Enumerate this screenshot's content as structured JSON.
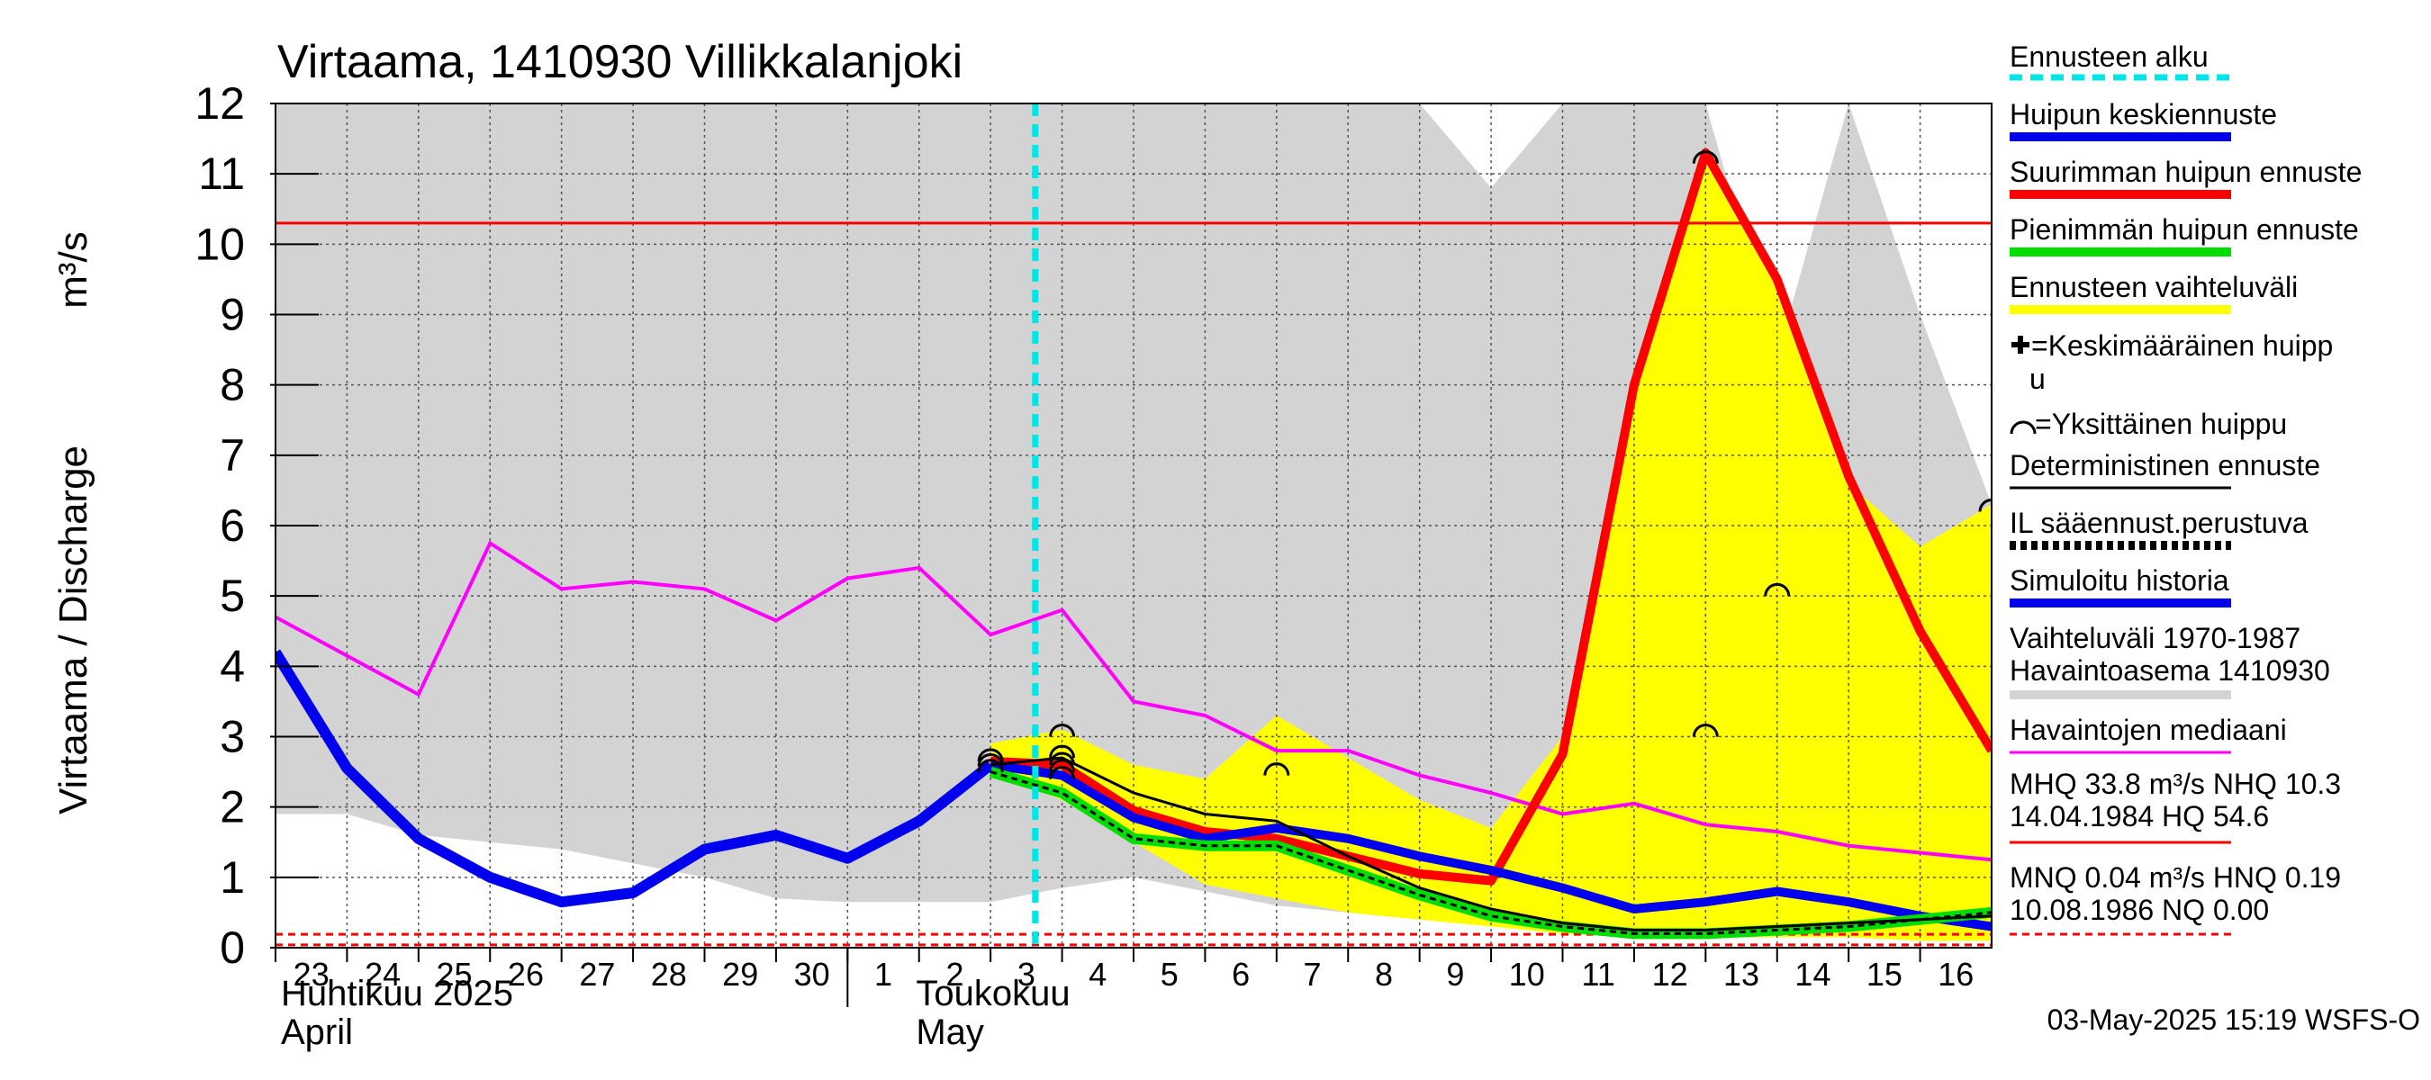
{
  "chart_data": {
    "type": "line",
    "title": "Virtaama, 1410930 Villikkalanjoki",
    "ylabel": "Virtaama / Discharge",
    "yunit": "m³/s",
    "ylim": [
      0,
      12
    ],
    "yticks": [
      0,
      1,
      2,
      3,
      4,
      5,
      6,
      7,
      8,
      9,
      10,
      11,
      12
    ],
    "xlim": [
      "2025-04-23",
      "2025-05-16T24:00"
    ],
    "x_tick_labels": [
      "23",
      "24",
      "25",
      "26",
      "27",
      "28",
      "29",
      "30",
      "1",
      "2",
      "3",
      "4",
      "5",
      "6",
      "7",
      "8",
      "9",
      "10",
      "11",
      "12",
      "13",
      "14",
      "15",
      "16"
    ],
    "month_labels": [
      {
        "fi": "Huhtikuu  2025",
        "en": "April"
      },
      {
        "fi": "Toukokuu",
        "en": "May"
      }
    ],
    "grid": true,
    "legend_position": "right",
    "forecast_start": "2025-05-03T15:00",
    "hq_reference_line": 10.3,
    "nq_reference_lines": [
      0.04,
      0.19
    ],
    "series": [
      {
        "name": "Vaihteluväli 1970-1987  Havaintoasema 1410930",
        "kind": "band",
        "color": "#d3d3d3",
        "x": [
          "2025-04-23",
          "2025-04-24",
          "2025-04-25",
          "2025-04-26",
          "2025-04-27",
          "2025-04-28",
          "2025-04-29",
          "2025-04-30",
          "2025-05-01",
          "2025-05-02",
          "2025-05-03",
          "2025-05-04",
          "2025-05-05",
          "2025-05-06",
          "2025-05-07",
          "2025-05-08",
          "2025-05-09",
          "2025-05-10",
          "2025-05-11",
          "2025-05-12",
          "2025-05-13",
          "2025-05-14",
          "2025-05-15",
          "2025-05-16",
          "2025-05-16T24:00"
        ],
        "upper": [
          12,
          12,
          12,
          12,
          12,
          12,
          12,
          12,
          12,
          12,
          12,
          12,
          12,
          12,
          12,
          12,
          12,
          10.8,
          12,
          12,
          12,
          8.4,
          12,
          9,
          6.3
        ],
        "lower": [
          1.9,
          1.9,
          1.6,
          1.5,
          1.4,
          1.2,
          1.0,
          0.7,
          0.65,
          0.65,
          0.65,
          0.85,
          1.0,
          0.8,
          0.6,
          0.5,
          0.4,
          0.35,
          0.3,
          0.2,
          0.15,
          0.15,
          0.15,
          0.1,
          0.1
        ]
      },
      {
        "name": "Ennusteen vaihteluväli",
        "kind": "band",
        "color": "#ffff00",
        "x": [
          "2025-05-03",
          "2025-05-04",
          "2025-05-05",
          "2025-05-06",
          "2025-05-07",
          "2025-05-08",
          "2025-05-09",
          "2025-05-10",
          "2025-05-11",
          "2025-05-12",
          "2025-05-13",
          "2025-05-14",
          "2025-05-15",
          "2025-05-16",
          "2025-05-16T24:00"
        ],
        "upper": [
          2.9,
          3.1,
          2.6,
          2.4,
          3.3,
          2.7,
          2.1,
          1.7,
          3.0,
          8.0,
          11.3,
          9.5,
          6.6,
          5.7,
          6.3
        ],
        "lower": [
          2.5,
          2.1,
          1.5,
          0.9,
          0.7,
          0.5,
          0.4,
          0.3,
          0.2,
          0.15,
          0.15,
          0.15,
          0.15,
          0.1,
          0.1
        ]
      },
      {
        "name": "Havaintojen mediaani",
        "color": "#ff00ff",
        "x": [
          "2025-04-23",
          "2025-04-24",
          "2025-04-25",
          "2025-04-26",
          "2025-04-27",
          "2025-04-28",
          "2025-04-29",
          "2025-04-30",
          "2025-05-01",
          "2025-05-02",
          "2025-05-03",
          "2025-05-04",
          "2025-05-05",
          "2025-05-06",
          "2025-05-07",
          "2025-05-08",
          "2025-05-09",
          "2025-05-10",
          "2025-05-11",
          "2025-05-12",
          "2025-05-13",
          "2025-05-14",
          "2025-05-15",
          "2025-05-16",
          "2025-05-16T24:00"
        ],
        "y": [
          4.7,
          4.15,
          3.6,
          5.75,
          5.1,
          5.2,
          5.1,
          4.65,
          5.25,
          5.4,
          4.45,
          4.8,
          3.5,
          3.3,
          2.8,
          2.8,
          2.45,
          2.2,
          1.9,
          2.05,
          1.75,
          1.65,
          1.45,
          1.35,
          1.25
        ]
      },
      {
        "name": "Simuloitu historia",
        "color": "#0000ee",
        "x": [
          "2025-04-23",
          "2025-04-24",
          "2025-04-25",
          "2025-04-26",
          "2025-04-27",
          "2025-04-28",
          "2025-04-29",
          "2025-04-30",
          "2025-05-01",
          "2025-05-02",
          "2025-05-03"
        ],
        "y": [
          4.2,
          2.55,
          1.55,
          1.0,
          0.65,
          0.78,
          1.4,
          1.6,
          1.27,
          1.8,
          2.6
        ]
      },
      {
        "name": "Suurimman huipun ennuste",
        "color": "#ff0000",
        "x": [
          "2025-05-03",
          "2025-05-04",
          "2025-05-05",
          "2025-05-06",
          "2025-05-07",
          "2025-05-08",
          "2025-05-09",
          "2025-05-10",
          "2025-05-11",
          "2025-05-12",
          "2025-05-13",
          "2025-05-14",
          "2025-05-15",
          "2025-05-16",
          "2025-05-16T24:00"
        ],
        "y": [
          2.65,
          2.6,
          1.95,
          1.65,
          1.55,
          1.3,
          1.05,
          0.95,
          2.75,
          8.0,
          11.3,
          9.5,
          6.7,
          4.5,
          2.8
        ]
      },
      {
        "name": "Huipun keskiennuste",
        "color": "#0000ee",
        "x": [
          "2025-05-03",
          "2025-05-04",
          "2025-05-05",
          "2025-05-06",
          "2025-05-07",
          "2025-05-08",
          "2025-05-09",
          "2025-05-10",
          "2025-05-11",
          "2025-05-12",
          "2025-05-13",
          "2025-05-14",
          "2025-05-15",
          "2025-05-16",
          "2025-05-16T24:00"
        ],
        "y": [
          2.6,
          2.45,
          1.85,
          1.55,
          1.7,
          1.55,
          1.3,
          1.1,
          0.85,
          0.55,
          0.65,
          0.8,
          0.65,
          0.45,
          0.3
        ]
      },
      {
        "name": "Pienimmän huipun ennuste",
        "color": "#00dd00",
        "x": [
          "2025-05-03",
          "2025-05-04",
          "2025-05-05",
          "2025-05-06",
          "2025-05-07",
          "2025-05-08",
          "2025-05-09",
          "2025-05-10",
          "2025-05-11",
          "2025-05-12",
          "2025-05-13",
          "2025-05-14",
          "2025-05-15",
          "2025-05-16",
          "2025-05-16T24:00"
        ],
        "y": [
          2.5,
          2.2,
          1.55,
          1.45,
          1.45,
          1.1,
          0.75,
          0.45,
          0.3,
          0.2,
          0.2,
          0.25,
          0.3,
          0.4,
          0.5
        ]
      },
      {
        "name": "IL sääennust.perustuva",
        "color": "#000000",
        "dashed": true,
        "x": [
          "2025-05-03",
          "2025-05-04",
          "2025-05-05",
          "2025-05-06",
          "2025-05-07",
          "2025-05-08",
          "2025-05-09",
          "2025-05-10",
          "2025-05-11",
          "2025-05-12",
          "2025-05-13",
          "2025-05-14",
          "2025-05-15",
          "2025-05-16",
          "2025-05-16T24:00"
        ],
        "y": [
          2.5,
          2.2,
          1.55,
          1.45,
          1.45,
          1.1,
          0.75,
          0.45,
          0.3,
          0.2,
          0.2,
          0.25,
          0.3,
          0.4,
          0.5
        ]
      },
      {
        "name": "Deterministinen ennuste",
        "color": "#000000",
        "x": [
          "2025-05-03",
          "2025-05-04",
          "2025-05-05",
          "2025-05-06",
          "2025-05-07",
          "2025-05-08",
          "2025-05-09",
          "2025-05-10",
          "2025-05-11",
          "2025-05-12",
          "2025-05-13",
          "2025-05-14",
          "2025-05-15",
          "2025-05-16",
          "2025-05-16T24:00"
        ],
        "y": [
          2.6,
          2.7,
          2.2,
          1.9,
          1.8,
          1.3,
          0.85,
          0.55,
          0.35,
          0.25,
          0.25,
          0.3,
          0.35,
          0.4,
          0.45
        ]
      }
    ],
    "single_peaks": [
      {
        "x": "2025-05-03",
        "y": 2.75
      },
      {
        "x": "2025-05-03",
        "y": 2.68
      },
      {
        "x": "2025-05-03",
        "y": 2.6
      },
      {
        "x": "2025-05-04",
        "y": 3.1
      },
      {
        "x": "2025-05-04",
        "y": 2.8
      },
      {
        "x": "2025-05-04",
        "y": 2.7
      },
      {
        "x": "2025-05-04",
        "y": 2.6
      },
      {
        "x": "2025-05-04",
        "y": 2.5
      },
      {
        "x": "2025-05-07",
        "y": 2.55
      },
      {
        "x": "2025-05-13",
        "y": 11.25
      },
      {
        "x": "2025-05-13",
        "y": 3.1
      },
      {
        "x": "2025-05-14",
        "y": 5.1
      },
      {
        "x": "2025-05-16T24:00",
        "y": 6.3
      }
    ],
    "legend": [
      {
        "label": "Ennusteen alku",
        "color": "#00e5e5",
        "style": "dashed"
      },
      {
        "label": "Huipun keskiennuste",
        "color": "#0000ee",
        "style": "solid"
      },
      {
        "label": "Suurimman huipun ennuste",
        "color": "#ff0000",
        "style": "solid"
      },
      {
        "label": "Pienimmän huipun ennuste",
        "color": "#00dd00",
        "style": "solid"
      },
      {
        "label": "Ennusteen vaihteluväli",
        "color": "#ffff00",
        "style": "solid"
      },
      {
        "label": "=Keskimääräinen huipp",
        "label2": "u",
        "marker": "plus"
      },
      {
        "label": "=Yksittäinen huippu",
        "marker": "arc"
      },
      {
        "label": "Deterministinen ennuste",
        "color": "#000000",
        "style": "thin"
      },
      {
        "label": "IL sääennust.perustuva",
        "color": "#000000",
        "style": "dashed"
      },
      {
        "label": "Simuloitu historia",
        "color": "#0000ee",
        "style": "solid"
      },
      {
        "label": "Vaihteluväli 1970-1987",
        "label2": " Havaintoasema 1410930",
        "color": "#d3d3d3",
        "style": "solid"
      },
      {
        "label": "Havaintojen mediaani",
        "color": "#ff00ff",
        "style": "thin"
      },
      {
        "label": "MHQ 33.8 m³/s NHQ 10.3",
        "label2": "14.04.1984 HQ 54.6",
        "color": "#ff0000",
        "style": "thin"
      },
      {
        "label": "MNQ 0.04 m³/s HNQ 0.19",
        "label2": "10.08.1986 NQ 0.00",
        "color": "#ff0000",
        "style": "dotted"
      }
    ],
    "footer": "03-May-2025 15:19 WSFS-O"
  }
}
